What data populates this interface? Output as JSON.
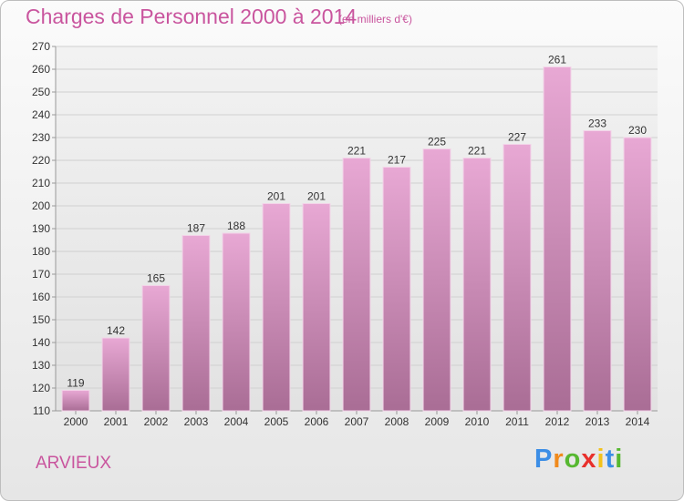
{
  "header": {
    "title": "Charges de Personnel 2000 à 2014",
    "unit": "(en milliers d'€)"
  },
  "footer": {
    "commune": "ARVIEUX",
    "logo_letters": [
      "P",
      "r",
      "o",
      "x",
      "i",
      "t",
      "i"
    ],
    "logo_colors": [
      "#3c8ee6",
      "#f08a1c",
      "#57b831",
      "#e8302c",
      "#f2c21c",
      "#3c8ee6",
      "#57b831"
    ]
  },
  "chart_data": {
    "type": "bar",
    "title": "Charges de Personnel 2000 à 2014",
    "subtitle": "(en milliers d'€)",
    "categories": [
      "2000",
      "2001",
      "2002",
      "2003",
      "2004",
      "2005",
      "2006",
      "2007",
      "2008",
      "2009",
      "2010",
      "2011",
      "2012",
      "2013",
      "2014"
    ],
    "values": [
      119,
      142,
      165,
      187,
      188,
      201,
      201,
      221,
      217,
      225,
      221,
      227,
      261,
      233,
      230
    ],
    "ylim": [
      110,
      270
    ],
    "yticks": [
      110,
      120,
      130,
      140,
      150,
      160,
      170,
      180,
      190,
      200,
      210,
      220,
      230,
      240,
      250,
      260,
      270
    ],
    "grid": true,
    "bar_color_top": "#e8a8d4",
    "bar_color_bottom": "#a96d95"
  }
}
